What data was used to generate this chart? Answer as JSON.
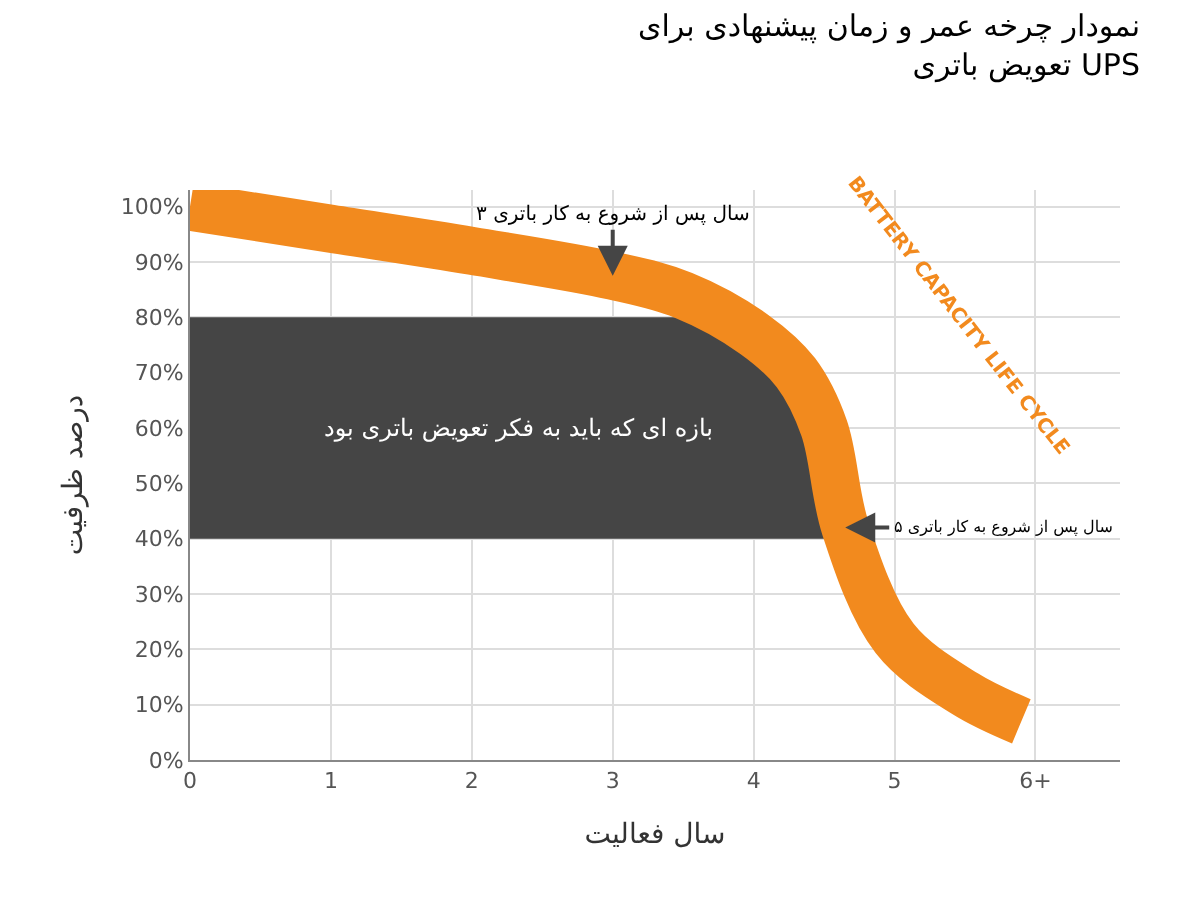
{
  "chart_data": {
    "type": "line",
    "title": "نمودار چرخه عمر و زمان پیشنهادی برای\nتعویض باتری UPS",
    "xlabel": "سال فعالیت",
    "ylabel": "درصد ظرفیت",
    "x": [
      0,
      1,
      2,
      3,
      3.5,
      4,
      4.3,
      4.5,
      4.65,
      5,
      5.5,
      5.9
    ],
    "series": [
      {
        "name": "BATTERY CAPACITY LIFE CYCLE",
        "color": "#f28a1e",
        "values": [
          100,
          96,
          92,
          87.5,
          84,
          77,
          70,
          60,
          42,
          22,
          12,
          7
        ]
      }
    ],
    "bands": [
      {
        "axis": "y",
        "from": 40,
        "to": 80,
        "label": "بازه ای که باید به فکر تعویض باتری بود",
        "color": "#454545"
      }
    ],
    "annotations": [
      {
        "text": "۳ سال پس از شروع به کار باتری",
        "x": 3,
        "y": 87.5
      },
      {
        "text": "۵ سال پس از شروع به کار باتری",
        "x": 4.65,
        "y": 42
      }
    ],
    "xlim": [
      0,
      6.6
    ],
    "ylim": [
      0,
      103
    ],
    "xticks": [
      0,
      1,
      2,
      3,
      4,
      5,
      {
        "value": 6,
        "label": "6+"
      }
    ],
    "yticks": [
      {
        "value": 0,
        "label": "0%"
      },
      {
        "value": 10,
        "label": "10%"
      },
      {
        "value": 20,
        "label": "20%"
      },
      {
        "value": 30,
        "label": "30%"
      },
      {
        "value": 40,
        "label": "40%"
      },
      {
        "value": 50,
        "label": "50%"
      },
      {
        "value": 60,
        "label": "60%"
      },
      {
        "value": 70,
        "label": "70%"
      },
      {
        "value": 80,
        "label": "80%"
      },
      {
        "value": 90,
        "label": "90%"
      },
      {
        "value": 100,
        "label": "100%"
      }
    ],
    "grid": true,
    "legend": false,
    "marker": "none",
    "line_style": "solid"
  }
}
